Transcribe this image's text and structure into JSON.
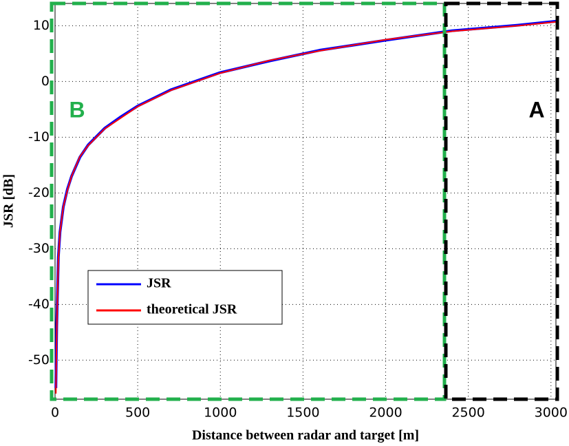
{
  "chart_data": {
    "type": "line",
    "xlabel": "Distance between radar and target [m]",
    "ylabel": "JSR [dB]",
    "annotations": [
      "A",
      "B"
    ],
    "x": [
      5,
      10,
      20,
      30,
      50,
      75,
      100,
      150,
      200,
      300,
      400,
      500,
      700,
      1000,
      1300,
      1600,
      2000,
      2400,
      2800,
      3030
    ],
    "series": [
      {
        "name": "JSR",
        "color": "#0000ff",
        "values": [
          -55,
          -44,
          -31.5,
          -27,
          -22.5,
          -19.3,
          -17,
          -13.6,
          -11.4,
          -8.4,
          -6.3,
          -4.4,
          -1.5,
          1.6,
          3.7,
          5.6,
          7.4,
          9.1,
          10.1,
          10.8
        ]
      },
      {
        "name": "theoretical JSR",
        "color": "#ff0000",
        "values": [
          -56,
          -45,
          -32,
          -27,
          -22.5,
          -19.5,
          -17,
          -13.5,
          -11.5,
          -8.5,
          -6.5,
          -4.5,
          -1.6,
          1.5,
          3.8,
          5.5,
          7.5,
          9,
          10,
          10.7
        ]
      }
    ],
    "xlim": [
      0,
      3030
    ],
    "ylim": [
      -57,
      14
    ],
    "xticks": [
      0,
      500,
      1000,
      1500,
      2000,
      2500,
      3000
    ],
    "yticks": [
      -50,
      -40,
      -30,
      -20,
      -10,
      0,
      10
    ],
    "grid": true
  }
}
